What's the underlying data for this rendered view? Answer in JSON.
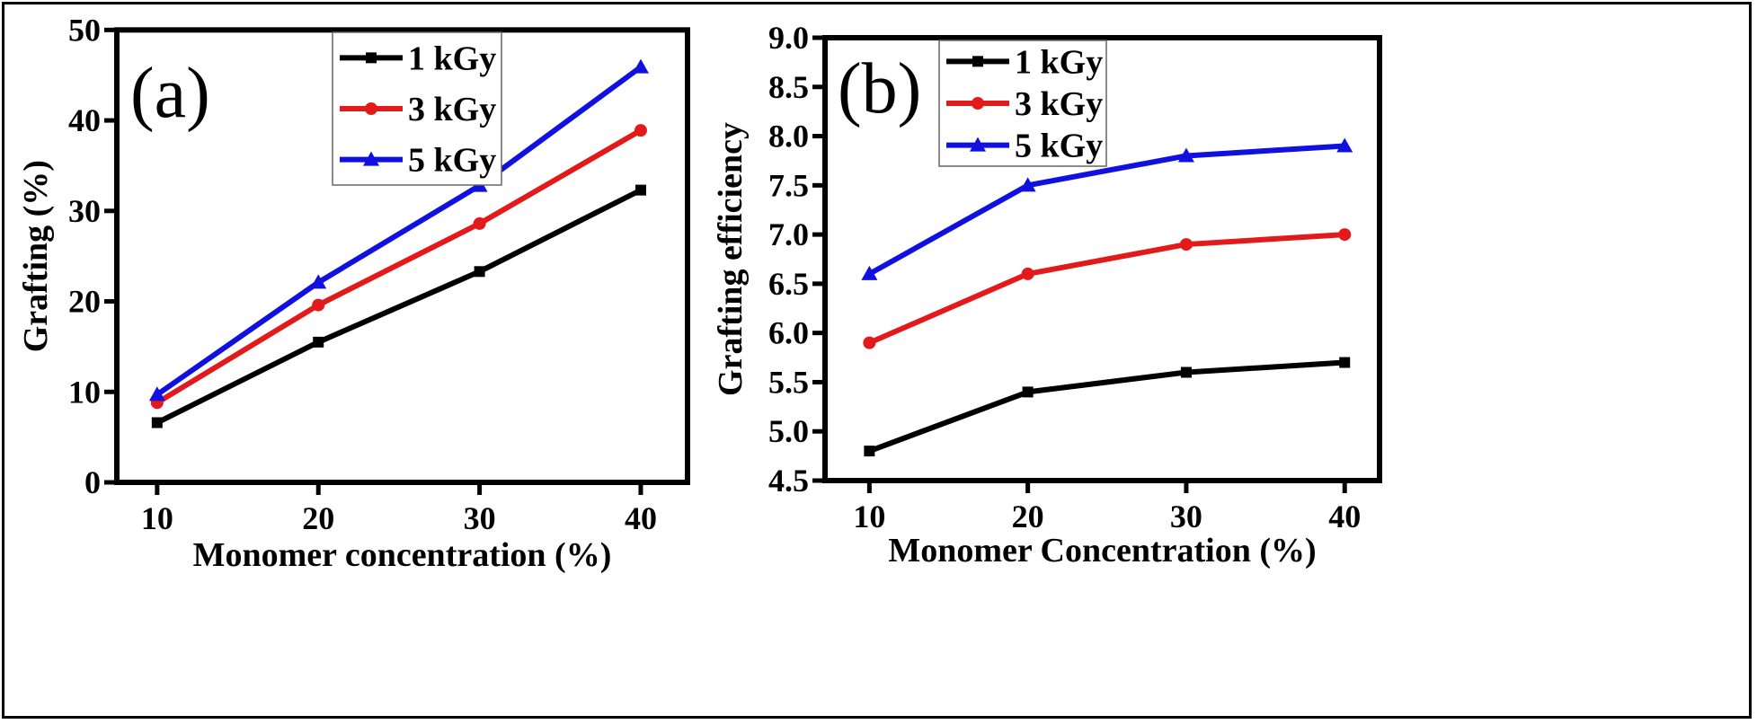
{
  "chart_data": [
    {
      "type": "line",
      "panel_label": "(a)",
      "xlabel": "Monomer concentration (%)",
      "ylabel": "Grafting (%)",
      "x": [
        10,
        20,
        30,
        40
      ],
      "xticks": [
        "10",
        "20",
        "30",
        "40"
      ],
      "yticks": [
        "0",
        "10",
        "20",
        "30",
        "40",
        "50"
      ],
      "xlim": [
        7.5,
        42.9
      ],
      "ylim": [
        0,
        50
      ],
      "grid": false,
      "legend_position": "top-center",
      "series": [
        {
          "name": "1 kGy",
          "color": "#000000",
          "marker": "square",
          "values": [
            6.6,
            15.5,
            23.3,
            32.3
          ]
        },
        {
          "name": "3 kGy",
          "color": "#e31a1c",
          "marker": "circle",
          "values": [
            8.8,
            19.6,
            28.6,
            38.9
          ]
        },
        {
          "name": "5 kGy",
          "color": "#1010e0",
          "marker": "triangle",
          "values": [
            9.7,
            22.1,
            32.8,
            45.9
          ]
        }
      ]
    },
    {
      "type": "line",
      "panel_label": "(b)",
      "xlabel": "Monomer Concentration (%)",
      "ylabel": "Grafting efficiency",
      "x": [
        10,
        20,
        30,
        40
      ],
      "xticks": [
        "10",
        "20",
        "30",
        "40"
      ],
      "yticks": [
        "4.5",
        "5.0",
        "5.5",
        "6.0",
        "6.5",
        "7.0",
        "7.5",
        "8.0",
        "8.5",
        "9.0"
      ],
      "xlim": [
        7.2,
        42.2
      ],
      "ylim": [
        4.5,
        9.0
      ],
      "grid": false,
      "legend_position": "top-left",
      "series": [
        {
          "name": "1 kGy",
          "color": "#000000",
          "marker": "square",
          "values": [
            4.8,
            5.4,
            5.6,
            5.7
          ]
        },
        {
          "name": "3 kGy",
          "color": "#e31a1c",
          "marker": "circle",
          "values": [
            5.9,
            6.6,
            6.9,
            7.0
          ]
        },
        {
          "name": "5 kGy",
          "color": "#1010e0",
          "marker": "triangle",
          "values": [
            6.6,
            7.5,
            7.8,
            7.9
          ]
        }
      ]
    }
  ]
}
